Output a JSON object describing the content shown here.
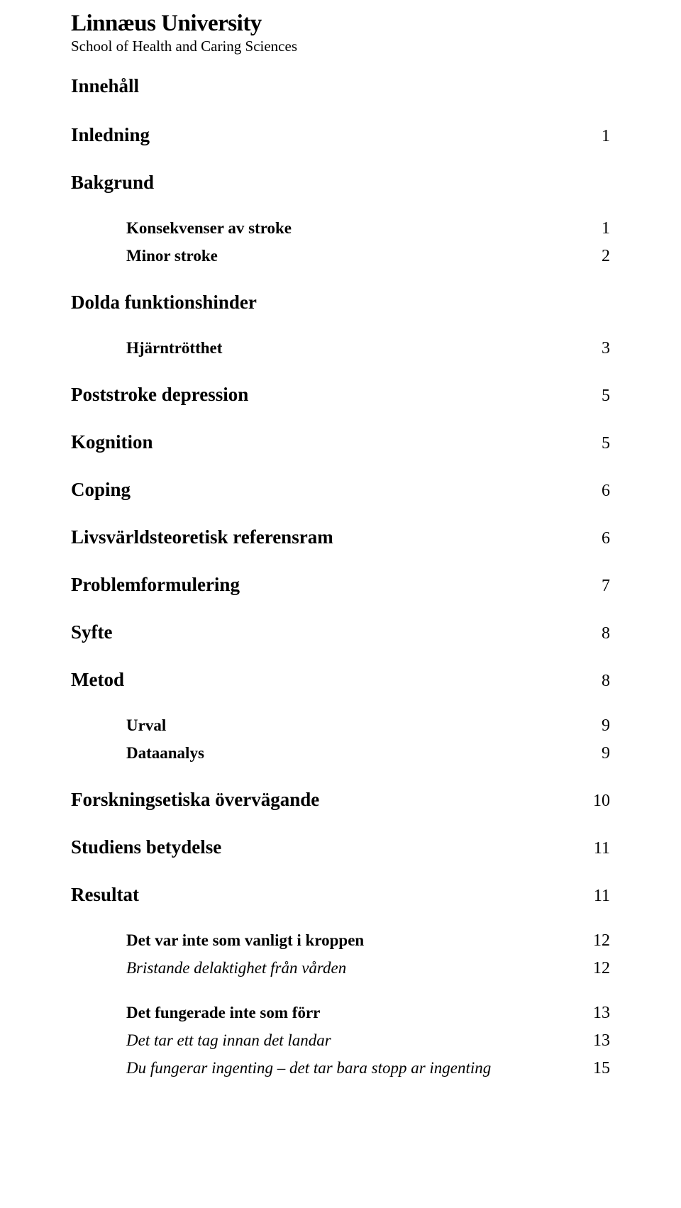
{
  "header": {
    "university": "Linnæus University",
    "school": "School of Health and Caring Sciences"
  },
  "toc_title": "Innehåll",
  "entries": [
    {
      "label": "Inledning",
      "page": "1",
      "cls": "lvl1"
    },
    {
      "label": "Bakgrund",
      "page": "",
      "cls": "lvl1"
    },
    {
      "label": "Konsekvenser av stroke",
      "page": "1",
      "cls": "lvl2"
    },
    {
      "label": "Minor stroke",
      "page": "2",
      "cls": "lvl2 tight"
    },
    {
      "label": "Dolda funktionshinder",
      "page": "",
      "cls": "lvl1"
    },
    {
      "label": "Hjärntrötthet",
      "page": "3",
      "cls": "lvl2"
    },
    {
      "label": "Poststroke depression",
      "page": "5",
      "cls": "lvl1"
    },
    {
      "label": "Kognition",
      "page": "5",
      "cls": "lvl1"
    },
    {
      "label": "Coping",
      "page": "6",
      "cls": "lvl1"
    },
    {
      "label": "Livsvärldsteoretisk referensram",
      "page": "6",
      "cls": "lvl1"
    },
    {
      "label": "Problemformulering",
      "page": "7",
      "cls": "lvl1"
    },
    {
      "label": "Syfte",
      "page": "8",
      "cls": "lvl1"
    },
    {
      "label": "Metod",
      "page": "8",
      "cls": "lvl1"
    },
    {
      "label": "Urval",
      "page": "9",
      "cls": "lvl2"
    },
    {
      "label": "Dataanalys",
      "page": "9",
      "cls": "lvl2 tight"
    },
    {
      "label": "Forskningsetiska övervägande",
      "page": "10",
      "cls": "lvl1"
    },
    {
      "label": "Studiens betydelse",
      "page": "11",
      "cls": "lvl1"
    },
    {
      "label": "Resultat",
      "page": "11",
      "cls": "lvl1"
    },
    {
      "label": "Det var inte som vanligt i kroppen",
      "page": "12",
      "cls": "lvl2"
    },
    {
      "label": "Bristande delaktighet från vården",
      "page": "12",
      "cls": "lvl2i tight"
    },
    {
      "label": "Det fungerade inte som förr",
      "page": "13",
      "cls": "lvl2"
    },
    {
      "label": "Det tar ett tag innan det landar",
      "page": "13",
      "cls": "lvl2i tight"
    },
    {
      "label": "Du fungerar ingenting – det tar bara stopp ar ingenting",
      "page": "15",
      "cls": "lvl2i tight"
    }
  ]
}
